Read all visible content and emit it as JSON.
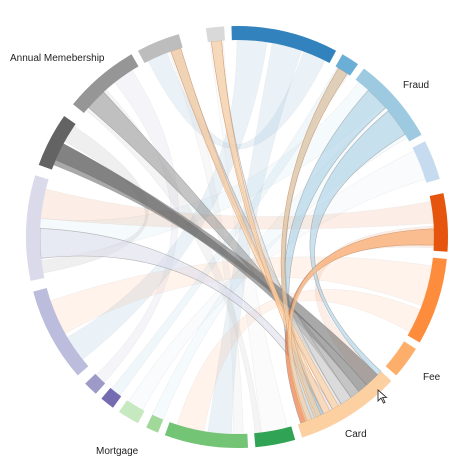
{
  "diagram": {
    "type": "chord",
    "labels": {
      "annual_membership": "Annual Memebership",
      "fraud": "Fraud",
      "fee": "Fee",
      "card": "Card",
      "mortgage": "Mortgage"
    },
    "groups": [
      {
        "id": "g0",
        "color": "#d9d9d9"
      },
      {
        "id": "g1",
        "color": "#3182bd"
      },
      {
        "id": "g2",
        "color": "#6baed6"
      },
      {
        "id": "g3",
        "color": "#9ecae1"
      },
      {
        "id": "g4",
        "color": "#c6dbef"
      },
      {
        "id": "g5",
        "color": "#e6550d"
      },
      {
        "id": "g6",
        "color": "#fd8d3c"
      },
      {
        "id": "g7",
        "color": "#fdae6b"
      },
      {
        "id": "g8",
        "color": "#fdd0a2"
      },
      {
        "id": "g9",
        "color": "#31a354"
      },
      {
        "id": "g10",
        "color": "#74c476"
      },
      {
        "id": "g11",
        "color": "#a1d99b"
      },
      {
        "id": "g12",
        "color": "#c7e9c0"
      },
      {
        "id": "g13",
        "color": "#756bb1"
      },
      {
        "id": "g14",
        "color": "#9e9ac8"
      },
      {
        "id": "g15",
        "color": "#bcbddc"
      },
      {
        "id": "g16",
        "color": "#dadaeb"
      },
      {
        "id": "g17",
        "color": "#636363"
      },
      {
        "id": "g18",
        "color": "#969696"
      },
      {
        "id": "g19",
        "color": "#bdbdbd"
      }
    ],
    "highlighted_group": "g8",
    "cursor_visible": true
  }
}
